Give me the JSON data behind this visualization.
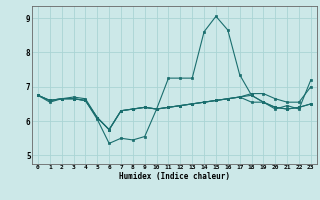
{
  "xlabel": "Humidex (Indice chaleur)",
  "xlim_min": -0.5,
  "xlim_max": 23.5,
  "ylim_min": 4.75,
  "ylim_max": 9.35,
  "yticks": [
    5,
    6,
    7,
    8,
    9
  ],
  "xticks": [
    0,
    1,
    2,
    3,
    4,
    5,
    6,
    7,
    8,
    9,
    10,
    11,
    12,
    13,
    14,
    15,
    16,
    17,
    18,
    19,
    20,
    21,
    22,
    23
  ],
  "bg_color": "#cce8e8",
  "grid_color": "#aad4d4",
  "line_color": "#1a6e6e",
  "line1": [
    6.75,
    6.55,
    6.65,
    6.65,
    6.6,
    6.05,
    5.35,
    5.5,
    5.45,
    5.55,
    6.35,
    7.25,
    7.25,
    7.25,
    8.6,
    9.05,
    8.65,
    7.35,
    6.75,
    6.55,
    6.35,
    6.45,
    6.35,
    7.2
  ],
  "line2": [
    6.75,
    6.6,
    6.65,
    6.65,
    6.6,
    6.1,
    5.75,
    6.3,
    6.35,
    6.4,
    6.35,
    6.4,
    6.45,
    6.5,
    6.55,
    6.6,
    6.65,
    6.7,
    6.75,
    6.55,
    6.4,
    6.35,
    6.4,
    6.5
  ],
  "line3": [
    6.75,
    6.6,
    6.65,
    6.7,
    6.65,
    6.1,
    5.75,
    6.3,
    6.35,
    6.4,
    6.35,
    6.4,
    6.45,
    6.5,
    6.55,
    6.6,
    6.65,
    6.7,
    6.8,
    6.8,
    6.65,
    6.55,
    6.55,
    7.0
  ],
  "line4": [
    6.75,
    6.6,
    6.65,
    6.65,
    6.6,
    6.1,
    5.75,
    6.3,
    6.35,
    6.4,
    6.35,
    6.4,
    6.45,
    6.5,
    6.55,
    6.6,
    6.65,
    6.7,
    6.55,
    6.55,
    6.4,
    6.35,
    6.4,
    6.5
  ]
}
